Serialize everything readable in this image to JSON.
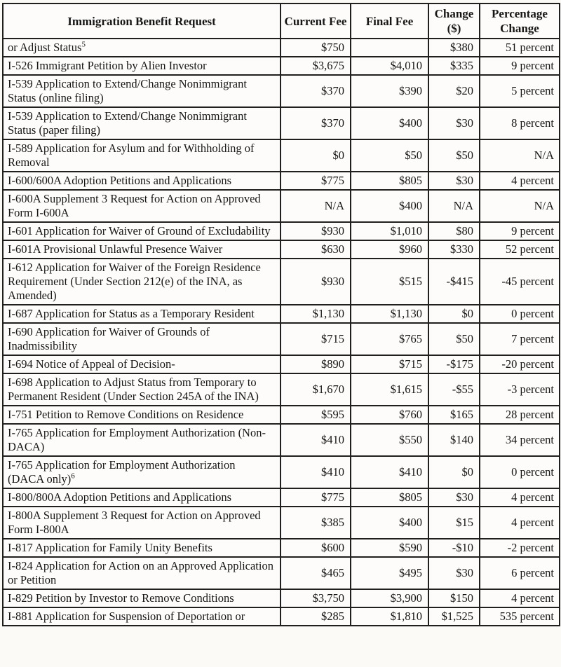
{
  "colors": {
    "paper": "#fbfaf7",
    "cell_background": "#fdfcfa",
    "border": "#1f1f1f",
    "text": "#161616"
  },
  "table": {
    "headers": [
      "Immigration Benefit Request",
      "Current Fee",
      "Final Fee",
      "Change ($)",
      "Percentage Change"
    ],
    "rows": [
      {
        "benefit": "or Adjust Status",
        "benefit_sup": "5",
        "current": "$750",
        "final": "",
        "change": "$380",
        "pct": "51 percent"
      },
      {
        "benefit": "I-526 Immigrant Petition by Alien Investor",
        "benefit_sup": "",
        "current": "$3,675",
        "final": "$4,010",
        "change": "$335",
        "pct": "9 percent"
      },
      {
        "benefit": "I-539 Application to Extend/Change Nonimmigrant Status (online filing)",
        "benefit_sup": "",
        "current": "$370",
        "final": "$390",
        "change": "$20",
        "pct": "5 percent"
      },
      {
        "benefit": "I-539 Application to Extend/Change Nonimmigrant Status (paper filing)",
        "benefit_sup": "",
        "current": "$370",
        "final": "$400",
        "change": "$30",
        "pct": "8 percent"
      },
      {
        "benefit": "I-589 Application for Asylum and for Withholding of Removal",
        "benefit_sup": "",
        "current": "$0",
        "final": "$50",
        "change": "$50",
        "pct": "N/A"
      },
      {
        "benefit": "I-600/600A Adoption Petitions and Applications",
        "benefit_sup": "",
        "current": "$775",
        "final": "$805",
        "change": "$30",
        "pct": "4 percent"
      },
      {
        "benefit": "I-600A Supplement 3 Request for Action on Approved Form I-600A",
        "benefit_sup": "",
        "current": "N/A",
        "final": "$400",
        "change": "N/A",
        "pct": "N/A"
      },
      {
        "benefit": "I-601 Application for Waiver of Ground of Excludability",
        "benefit_sup": "",
        "current": "$930",
        "final": "$1,010",
        "change": "$80",
        "pct": "9 percent"
      },
      {
        "benefit": "I-601A Provisional Unlawful Presence Waiver",
        "benefit_sup": "",
        "current": "$630",
        "final": "$960",
        "change": "$330",
        "pct": "52 percent"
      },
      {
        "benefit": "I-612 Application for Waiver of the Foreign Residence Requirement (Under Section 212(e) of the INA, as Amended)",
        "benefit_sup": "",
        "current": "$930",
        "final": "$515",
        "change": "-$415",
        "pct": "-45 percent"
      },
      {
        "benefit": "I-687 Application for Status as a Temporary Resident",
        "benefit_sup": "",
        "current": "$1,130",
        "final": "$1,130",
        "change": "$0",
        "pct": "0 percent"
      },
      {
        "benefit": "I-690 Application for Waiver of Grounds of Inadmissibility",
        "benefit_sup": "",
        "current": "$715",
        "final": "$765",
        "change": "$50",
        "pct": "7 percent"
      },
      {
        "benefit": "I-694 Notice of Appeal of Decision-",
        "benefit_sup": "",
        "current": "$890",
        "final": "$715",
        "change": "-$175",
        "pct": "-20 percent"
      },
      {
        "benefit": "I-698 Application to Adjust Status from Temporary to Permanent Resident (Under Section 245A of the INA)",
        "benefit_sup": "",
        "current": "$1,670",
        "final": "$1,615",
        "change": "-$55",
        "pct": "-3 percent"
      },
      {
        "benefit": "I-751 Petition to Remove Conditions on Residence",
        "benefit_sup": "",
        "current": "$595",
        "final": "$760",
        "change": "$165",
        "pct": "28 percent"
      },
      {
        "benefit": "I-765 Application for Employment Authorization (Non-DACA)",
        "benefit_sup": "",
        "current": "$410",
        "final": "$550",
        "change": "$140",
        "pct": "34 percent"
      },
      {
        "benefit": "I-765 Application for Employment Authorization (DACA only)",
        "benefit_sup": "6",
        "current": "$410",
        "final": "$410",
        "change": "$0",
        "pct": "0 percent"
      },
      {
        "benefit": "I-800/800A Adoption Petitions and Applications",
        "benefit_sup": "",
        "current": "$775",
        "final": "$805",
        "change": "$30",
        "pct": "4 percent"
      },
      {
        "benefit": "I-800A Supplement 3 Request for Action on Approved Form I-800A",
        "benefit_sup": "",
        "current": "$385",
        "final": "$400",
        "change": "$15",
        "pct": "4 percent"
      },
      {
        "benefit": "I-817 Application for Family Unity Benefits",
        "benefit_sup": "",
        "current": "$600",
        "final": "$590",
        "change": "-$10",
        "pct": "-2 percent"
      },
      {
        "benefit": "I-824 Application for Action on an Approved Application or Petition",
        "benefit_sup": "",
        "current": "$465",
        "final": "$495",
        "change": "$30",
        "pct": "6 percent"
      },
      {
        "benefit": "I-829 Petition by Investor to Remove Conditions",
        "benefit_sup": "",
        "current": "$3,750",
        "final": "$3,900",
        "change": "$150",
        "pct": "4 percent"
      },
      {
        "benefit": "I-881 Application for Suspension of Deportation or",
        "benefit_sup": "",
        "current": "$285",
        "final": "$1,810",
        "change": "$1,525",
        "pct": "535 percent"
      }
    ]
  }
}
